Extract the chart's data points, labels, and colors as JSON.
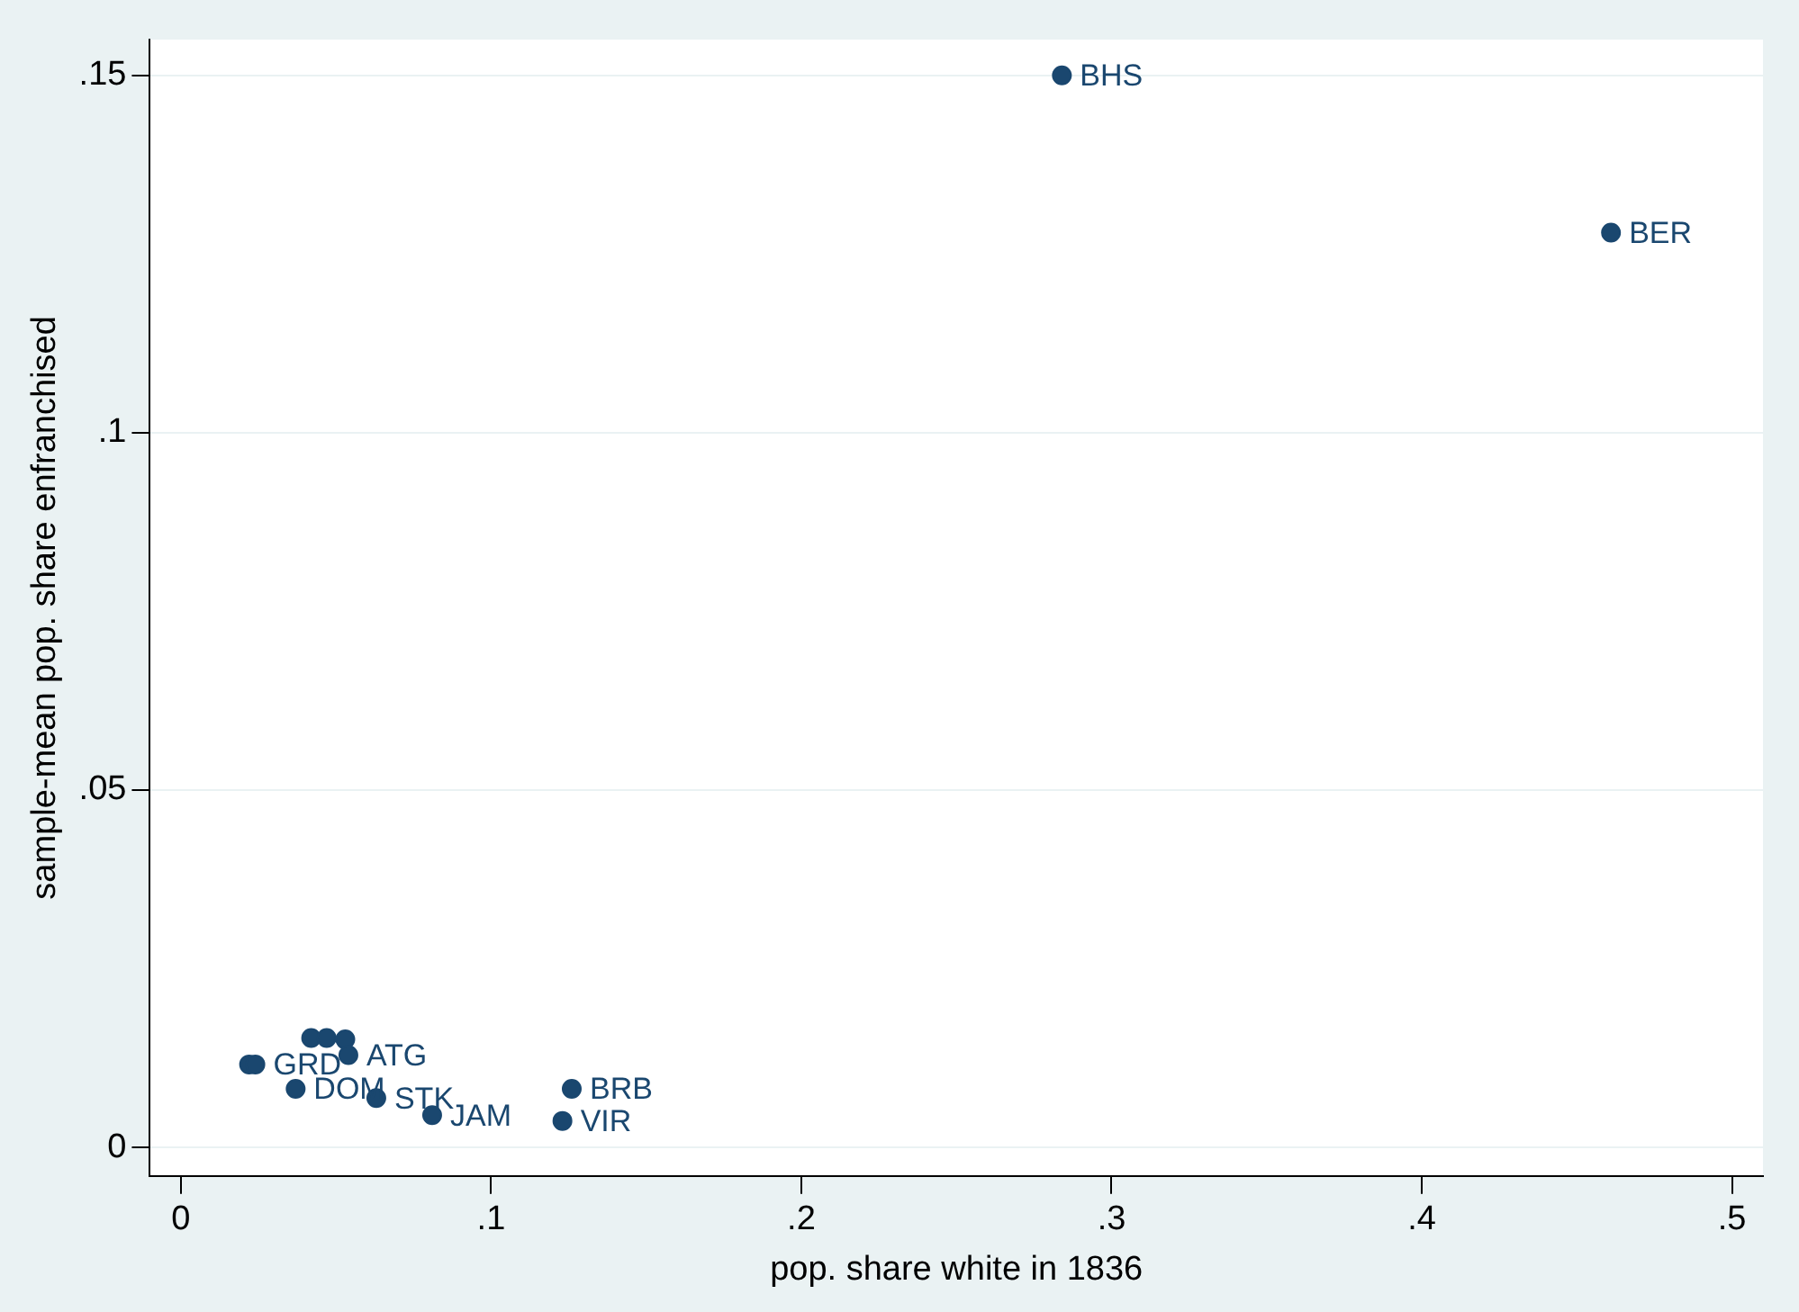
{
  "chart_data": {
    "type": "scatter",
    "xlabel": "pop. share white in 1836",
    "ylabel": "sample-mean pop. share enfranchised",
    "x": [
      0.284,
      0.461,
      0.126,
      0.123,
      0.081,
      0.063,
      0.037,
      0.022,
      0.024,
      0.042,
      0.047,
      0.053,
      0.054
    ],
    "series": [
      {
        "color": "#1a476f",
        "values": [
          0.15,
          0.128,
          0.0082,
          0.0037,
          0.0045,
          0.0069,
          0.0082,
          0.0116,
          0.0116,
          0.0153,
          0.0153,
          0.0151,
          0.0129
        ]
      }
    ],
    "annotations": [
      {
        "text": "BHS",
        "x": 0.284,
        "y": 0.15
      },
      {
        "text": "BER",
        "x": 0.461,
        "y": 0.128
      },
      {
        "text": "BRB",
        "x": 0.126,
        "y": 0.0082
      },
      {
        "text": "VIR",
        "x": 0.123,
        "y": 0.0037
      },
      {
        "text": "JAM",
        "x": 0.081,
        "y": 0.0045
      },
      {
        "text": "STK",
        "x": 0.063,
        "y": 0.0069
      },
      {
        "text": "DOM",
        "x": 0.037,
        "y": 0.0082
      },
      {
        "text": "GRD",
        "x": 0.024,
        "y": 0.0116
      },
      {
        "text": "ATG",
        "x": 0.054,
        "y": 0.0129
      }
    ],
    "xlim": [
      -0.01,
      0.51
    ],
    "ylim": [
      -0.004,
      0.155
    ],
    "xticks": [
      0,
      {
        "value": 0.1,
        "label": ".1"
      },
      {
        "value": 0.2,
        "label": ".2"
      },
      {
        "value": 0.3,
        "label": ".3"
      },
      {
        "value": 0.4,
        "label": ".4"
      },
      {
        "value": 0.5,
        "label": ".5"
      }
    ],
    "yticks": [
      0,
      {
        "value": 0.05,
        "label": ".05"
      },
      {
        "value": 0.1,
        "label": ".1"
      },
      {
        "value": 0.15,
        "label": ".15"
      }
    ],
    "grid": "y",
    "marker": "circle",
    "legend": false
  }
}
